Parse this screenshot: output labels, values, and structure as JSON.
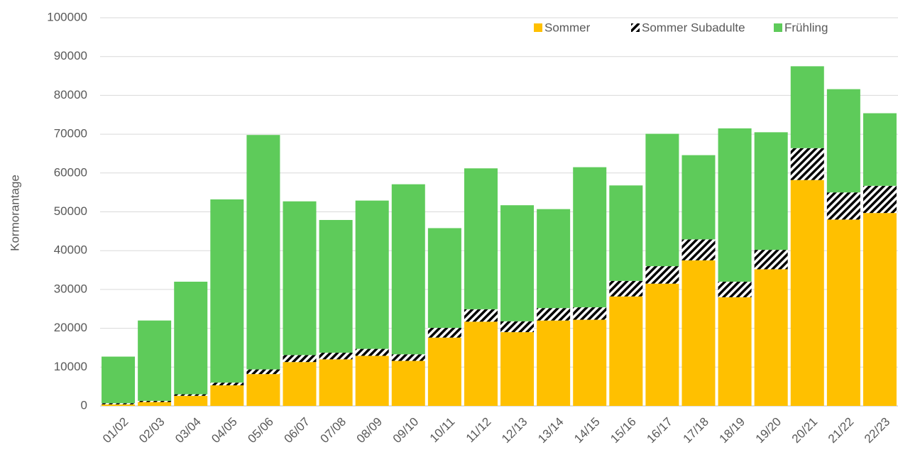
{
  "chart_data": {
    "type": "stacked_bar",
    "y_label": "Kormorantage",
    "categories": [
      "01/02",
      "02/03",
      "03/04",
      "04/05",
      "05/06",
      "06/07",
      "07/08",
      "08/09",
      "09/10",
      "10/11",
      "11/12",
      "12/13",
      "13/14",
      "14/15",
      "15/16",
      "16/17",
      "17/18",
      "18/19",
      "19/20",
      "20/21",
      "21/22",
      "22/23"
    ],
    "series": [
      {
        "name": "Sommer",
        "color": "#ffc000",
        "values": [
          400,
          1000,
          2600,
          5300,
          8200,
          11300,
          12000,
          12900,
          11600,
          17600,
          21700,
          19000,
          22000,
          22200,
          28200,
          31500,
          37500,
          28000,
          35200,
          58200,
          48000,
          49700
        ]
      },
      {
        "name": "Sommer Subadulte",
        "color": "#000000",
        "pattern": "hatch",
        "values": [
          300,
          300,
          400,
          700,
          1200,
          1800,
          1700,
          1800,
          1700,
          2500,
          3200,
          2800,
          3200,
          3200,
          4000,
          4500,
          5400,
          4000,
          5000,
          8200,
          7000,
          7000
        ]
      },
      {
        "name": "Frühling",
        "color": "#5ecb5a",
        "values": [
          12000,
          20700,
          29000,
          47200,
          60400,
          39600,
          34200,
          38200,
          43800,
          25700,
          36300,
          29900,
          25500,
          36100,
          24600,
          34100,
          21700,
          39500,
          30300,
          21100,
          26600,
          18700
        ]
      }
    ],
    "ylim": [
      0,
      100000
    ],
    "yticks": [
      0,
      10000,
      20000,
      30000,
      40000,
      50000,
      60000,
      70000,
      80000,
      90000,
      100000
    ],
    "grid": true,
    "legend": "top-right"
  }
}
